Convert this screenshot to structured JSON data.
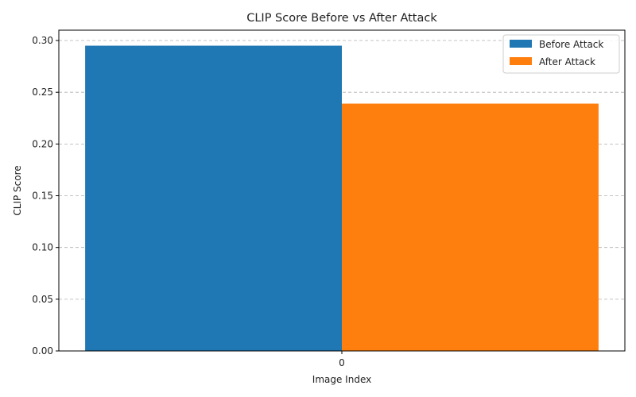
{
  "chart_data": {
    "type": "bar",
    "title": "CLIP Score Before vs After Attack",
    "xlabel": "Image Index",
    "ylabel": "CLIP Score",
    "categories": [
      "0"
    ],
    "series": [
      {
        "name": "Before Attack",
        "values": [
          0.295
        ],
        "color": "#1f77b4"
      },
      {
        "name": "After Attack",
        "values": [
          0.239
        ],
        "color": "#ff7f0e"
      }
    ],
    "yticks": [
      "0.00",
      "0.05",
      "0.10",
      "0.15",
      "0.20",
      "0.25",
      "0.30"
    ],
    "ylim": [
      0,
      0.31
    ],
    "grid": "y-dashed",
    "legend_position": "top-right"
  }
}
